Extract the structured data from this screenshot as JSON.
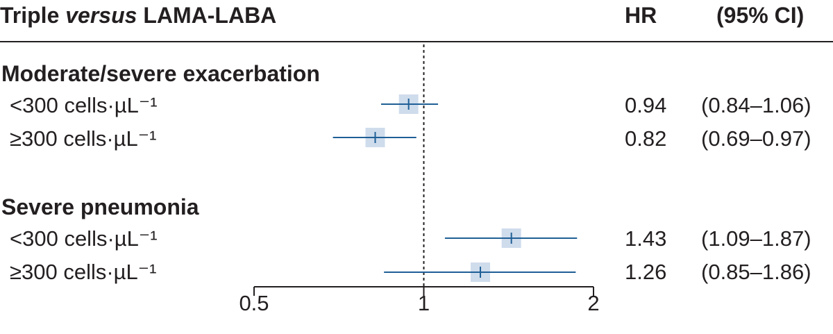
{
  "header": {
    "title_prefix": "Triple ",
    "title_italic": "versus",
    "title_suffix": " LAMA-LABA",
    "hr_label": "HR",
    "ci_label": "(95% CI)"
  },
  "colors": {
    "line": "#1f5f96",
    "box": "#cfdcec",
    "text": "#231f20"
  },
  "chart_data": {
    "type": "forest",
    "title": "Triple versus LAMA-LABA",
    "xscale": "log",
    "xlim": [
      0.5,
      2
    ],
    "xticks": [
      0.5,
      1,
      2
    ],
    "xtick_labels": [
      "0.5",
      "1",
      "2"
    ],
    "reference_line": 1,
    "groups": [
      {
        "name": "Moderate/severe exacerbation",
        "rows": [
          {
            "label": "<300 cells·µL⁻¹",
            "hr": 0.94,
            "ci_low": 0.84,
            "ci_high": 1.06,
            "hr_text": "0.94",
            "ci_text": "(0.84–1.06)"
          },
          {
            "label": "≥300 cells·µL⁻¹",
            "hr": 0.82,
            "ci_low": 0.69,
            "ci_high": 0.97,
            "hr_text": "0.82",
            "ci_text": "(0.69–0.97)"
          }
        ]
      },
      {
        "name": "Severe pneumonia",
        "rows": [
          {
            "label": "<300 cells·µL⁻¹",
            "hr": 1.43,
            "ci_low": 1.09,
            "ci_high": 1.87,
            "hr_text": "1.43",
            "ci_text": "(1.09–1.87)"
          },
          {
            "label": "≥300 cells·µL⁻¹",
            "hr": 1.26,
            "ci_low": 0.85,
            "ci_high": 1.86,
            "hr_text": "1.26",
            "ci_text": "(0.85–1.86)"
          }
        ]
      }
    ]
  }
}
